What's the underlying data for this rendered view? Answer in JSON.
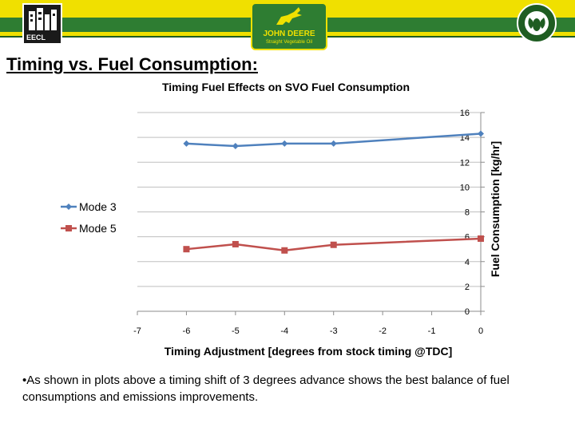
{
  "logos": {
    "left": "EECL",
    "center_name": "JOHN DEERE",
    "center_sub": "Straight Vegetable Oil"
  },
  "slide_title": "Timing vs. Fuel Consumption:",
  "note": "•As shown in plots above a timing shift of 3 degrees advance shows the best balance of fuel consumptions and emissions improvements.",
  "colors": {
    "banner_yellow": "#f0e000",
    "banner_green": "#2e7d32",
    "mode3": "#4f81bd",
    "mode5": "#c0504d"
  },
  "chart_data": {
    "type": "line",
    "title": "Timing Fuel Effects on SVO Fuel Consumption",
    "xlabel": "Timing  Adjustment [degrees from stock timing @TDC]",
    "ylabel": "Fuel Consumption [kg/hr]",
    "xlim": [
      -7,
      0
    ],
    "ylim": [
      0,
      16
    ],
    "xticks": [
      "-7",
      "-6",
      "-5",
      "-4",
      "-3",
      "-2",
      "-1",
      "0"
    ],
    "yticks": [
      "0",
      "2",
      "4",
      "6",
      "8",
      "10",
      "12",
      "14",
      "16"
    ],
    "grid": true,
    "legend_position": "left",
    "series": [
      {
        "name": "Mode 3",
        "marker": "diamond",
        "x": [
          -6,
          -5,
          -4,
          -3,
          0
        ],
        "y": [
          13.5,
          13.3,
          13.5,
          13.5,
          14.3
        ]
      },
      {
        "name": "Mode 5",
        "marker": "square",
        "x": [
          -6,
          -5,
          -4,
          -3,
          0
        ],
        "y": [
          5.0,
          5.4,
          4.9,
          5.35,
          5.85
        ]
      }
    ]
  }
}
